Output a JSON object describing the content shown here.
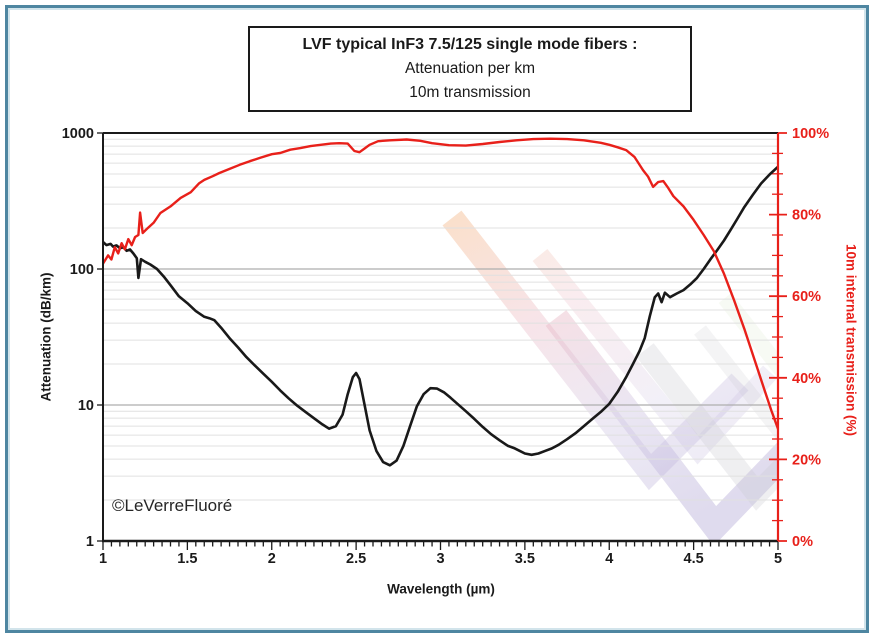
{
  "frame": {
    "border_color": "#4e86a1",
    "inner_glow": "#adcdda",
    "background": "#ffffff"
  },
  "title_box": {
    "line1": "LVF typical InF3 7.5/125 single mode fibers :",
    "line2": "Attenuation per km",
    "line3": "10m transmission"
  },
  "copyright": "©LeVerreFluoré",
  "accent_red": "#e8201a",
  "chart_data": {
    "type": "line",
    "title": "LVF typical InF3 7.5/125 single mode fibers : Attenuation per km / 10m transmission",
    "x_axis": {
      "label": "Wavelength (µm)",
      "range": [
        1,
        5
      ],
      "ticks": [
        1,
        1.5,
        2,
        2.5,
        3,
        3.5,
        4,
        4.5,
        5
      ],
      "tick_labels": [
        "1",
        "1.5",
        "2",
        "2.5",
        "3",
        "3.5",
        "4",
        "4.5",
        "5"
      ],
      "minor_step": 0.05
    },
    "y_axis_left": {
      "label": "Attenuation (dB/km)",
      "scale": "log",
      "range": [
        1,
        1000
      ],
      "ticks": [
        1,
        10,
        100,
        1000
      ],
      "tick_labels": [
        "1",
        "10",
        "100",
        "1000"
      ],
      "color": "#1a1a1a"
    },
    "y_axis_right": {
      "label": "10m internal transmission (%)",
      "scale": "linear",
      "range": [
        0,
        100
      ],
      "ticks": [
        0,
        20,
        40,
        60,
        80,
        100
      ],
      "tick_labels": [
        "0%",
        "20%",
        "40%",
        "60%",
        "80%",
        "100%"
      ],
      "minor_step": 5,
      "color": "#e8201a"
    },
    "grid": {
      "orientation": "horizontal-log",
      "minor_color": "#e0e0e0",
      "major_color": "#aeaeae"
    },
    "legend": "none",
    "series": [
      {
        "name": "Attenuation per km",
        "axis": "left",
        "unit": "dB/km",
        "color": "#191919",
        "width": 2.6,
        "points": [
          [
            1.0,
            158
          ],
          [
            1.02,
            150
          ],
          [
            1.045,
            153
          ],
          [
            1.06,
            146
          ],
          [
            1.08,
            149
          ],
          [
            1.1,
            142
          ],
          [
            1.12,
            145
          ],
          [
            1.14,
            136
          ],
          [
            1.16,
            139
          ],
          [
            1.18,
            130
          ],
          [
            1.2,
            120
          ],
          [
            1.21,
            86
          ],
          [
            1.225,
            118
          ],
          [
            1.25,
            113
          ],
          [
            1.28,
            108
          ],
          [
            1.32,
            100
          ],
          [
            1.36,
            88
          ],
          [
            1.4,
            76
          ],
          [
            1.45,
            63
          ],
          [
            1.5,
            56
          ],
          [
            1.55,
            49
          ],
          [
            1.6,
            44.5
          ],
          [
            1.63,
            43.5
          ],
          [
            1.66,
            42
          ],
          [
            1.7,
            37
          ],
          [
            1.75,
            31
          ],
          [
            1.8,
            26.5
          ],
          [
            1.85,
            22.5
          ],
          [
            1.9,
            19.5
          ],
          [
            1.95,
            17
          ],
          [
            2.0,
            14.8
          ],
          [
            2.05,
            12.8
          ],
          [
            2.1,
            11.2
          ],
          [
            2.15,
            9.9
          ],
          [
            2.2,
            8.9
          ],
          [
            2.25,
            8.0
          ],
          [
            2.3,
            7.2
          ],
          [
            2.34,
            6.7
          ],
          [
            2.38,
            7.0
          ],
          [
            2.42,
            8.5
          ],
          [
            2.45,
            12
          ],
          [
            2.48,
            16
          ],
          [
            2.5,
            17.2
          ],
          [
            2.52,
            15.5
          ],
          [
            2.55,
            10
          ],
          [
            2.58,
            6.5
          ],
          [
            2.62,
            4.6
          ],
          [
            2.66,
            3.8
          ],
          [
            2.7,
            3.6
          ],
          [
            2.74,
            3.9
          ],
          [
            2.78,
            5.0
          ],
          [
            2.82,
            7.0
          ],
          [
            2.86,
            9.8
          ],
          [
            2.9,
            12
          ],
          [
            2.94,
            13.3
          ],
          [
            2.98,
            13.2
          ],
          [
            3.02,
            12.4
          ],
          [
            3.06,
            11.3
          ],
          [
            3.1,
            10.2
          ],
          [
            3.15,
            9.0
          ],
          [
            3.2,
            7.9
          ],
          [
            3.25,
            6.9
          ],
          [
            3.3,
            6.1
          ],
          [
            3.35,
            5.5
          ],
          [
            3.4,
            5.0
          ],
          [
            3.44,
            4.8
          ],
          [
            3.47,
            4.6
          ],
          [
            3.5,
            4.4
          ],
          [
            3.54,
            4.3
          ],
          [
            3.58,
            4.4
          ],
          [
            3.62,
            4.6
          ],
          [
            3.66,
            4.8
          ],
          [
            3.7,
            5.1
          ],
          [
            3.75,
            5.6
          ],
          [
            3.8,
            6.2
          ],
          [
            3.85,
            7.0
          ],
          [
            3.9,
            7.9
          ],
          [
            3.95,
            8.9
          ],
          [
            4.0,
            10.2
          ],
          [
            4.05,
            12.5
          ],
          [
            4.1,
            16
          ],
          [
            4.14,
            20
          ],
          [
            4.18,
            25
          ],
          [
            4.21,
            31
          ],
          [
            4.24,
            45
          ],
          [
            4.27,
            62
          ],
          [
            4.29,
            66
          ],
          [
            4.31,
            57
          ],
          [
            4.33,
            67
          ],
          [
            4.36,
            62
          ],
          [
            4.4,
            66
          ],
          [
            4.44,
            70
          ],
          [
            4.48,
            77
          ],
          [
            4.52,
            86
          ],
          [
            4.56,
            100
          ],
          [
            4.6,
            118
          ],
          [
            4.64,
            138
          ],
          [
            4.68,
            162
          ],
          [
            4.72,
            195
          ],
          [
            4.76,
            235
          ],
          [
            4.8,
            285
          ],
          [
            4.85,
            350
          ],
          [
            4.9,
            425
          ],
          [
            4.95,
            495
          ],
          [
            5.0,
            565
          ]
        ]
      },
      {
        "name": "10m transmission",
        "axis": "right",
        "unit": "%",
        "color": "#e8201a",
        "width": 2.4,
        "points": [
          [
            1.0,
            68
          ],
          [
            1.03,
            70
          ],
          [
            1.05,
            69
          ],
          [
            1.07,
            72
          ],
          [
            1.09,
            70.5
          ],
          [
            1.11,
            73
          ],
          [
            1.13,
            71.5
          ],
          [
            1.15,
            74
          ],
          [
            1.17,
            72.5
          ],
          [
            1.19,
            74.5
          ],
          [
            1.21,
            75
          ],
          [
            1.22,
            80.5
          ],
          [
            1.235,
            75.5
          ],
          [
            1.26,
            76.5
          ],
          [
            1.3,
            78
          ],
          [
            1.34,
            80.4
          ],
          [
            1.4,
            82
          ],
          [
            1.46,
            84.1
          ],
          [
            1.52,
            85.5
          ],
          [
            1.57,
            87.7
          ],
          [
            1.6,
            88.5
          ],
          [
            1.65,
            89.4
          ],
          [
            1.69,
            90.2
          ],
          [
            1.75,
            91.2
          ],
          [
            1.81,
            92.2
          ],
          [
            1.87,
            93.1
          ],
          [
            1.93,
            93.9
          ],
          [
            2.0,
            94.8
          ],
          [
            2.05,
            95.1
          ],
          [
            2.11,
            95.9
          ],
          [
            2.17,
            96.3
          ],
          [
            2.23,
            96.8
          ],
          [
            2.29,
            97.1
          ],
          [
            2.35,
            97.4
          ],
          [
            2.4,
            97.5
          ],
          [
            2.45,
            97.4
          ],
          [
            2.49,
            95.6
          ],
          [
            2.52,
            95.3
          ],
          [
            2.55,
            96.2
          ],
          [
            2.58,
            97.1
          ],
          [
            2.63,
            98.0
          ],
          [
            2.7,
            98.2
          ],
          [
            2.8,
            98.4
          ],
          [
            2.88,
            98.1
          ],
          [
            2.95,
            97.5
          ],
          [
            3.05,
            97.0
          ],
          [
            3.15,
            96.9
          ],
          [
            3.25,
            97.3
          ],
          [
            3.35,
            97.8
          ],
          [
            3.45,
            98.2
          ],
          [
            3.55,
            98.5
          ],
          [
            3.65,
            98.6
          ],
          [
            3.75,
            98.5
          ],
          [
            3.85,
            98.2
          ],
          [
            3.95,
            97.6
          ],
          [
            4.0,
            97.1
          ],
          [
            4.05,
            96.5
          ],
          [
            4.1,
            95.8
          ],
          [
            4.15,
            94.1
          ],
          [
            4.2,
            90.9
          ],
          [
            4.23,
            89.3
          ],
          [
            4.26,
            86.8
          ],
          [
            4.29,
            88.0
          ],
          [
            4.32,
            88.2
          ],
          [
            4.35,
            86.5
          ],
          [
            4.38,
            84.5
          ],
          [
            4.44,
            82
          ],
          [
            4.5,
            78.7
          ],
          [
            4.56,
            75
          ],
          [
            4.62,
            71
          ],
          [
            4.68,
            65.5
          ],
          [
            4.74,
            59
          ],
          [
            4.8,
            52
          ],
          [
            4.86,
            44.5
          ],
          [
            4.92,
            37
          ],
          [
            4.96,
            32
          ],
          [
            5.0,
            27.5
          ]
        ]
      }
    ]
  },
  "watermark": {
    "name": "lvf-chevron-logo",
    "colors": {
      "orange": "#f2a96e",
      "pink": "#eab4c0",
      "lavender": "#cdc3e2",
      "purple": "#b3a9d6",
      "gray": "#c9c9cf",
      "green": "#cfe2b8"
    }
  }
}
